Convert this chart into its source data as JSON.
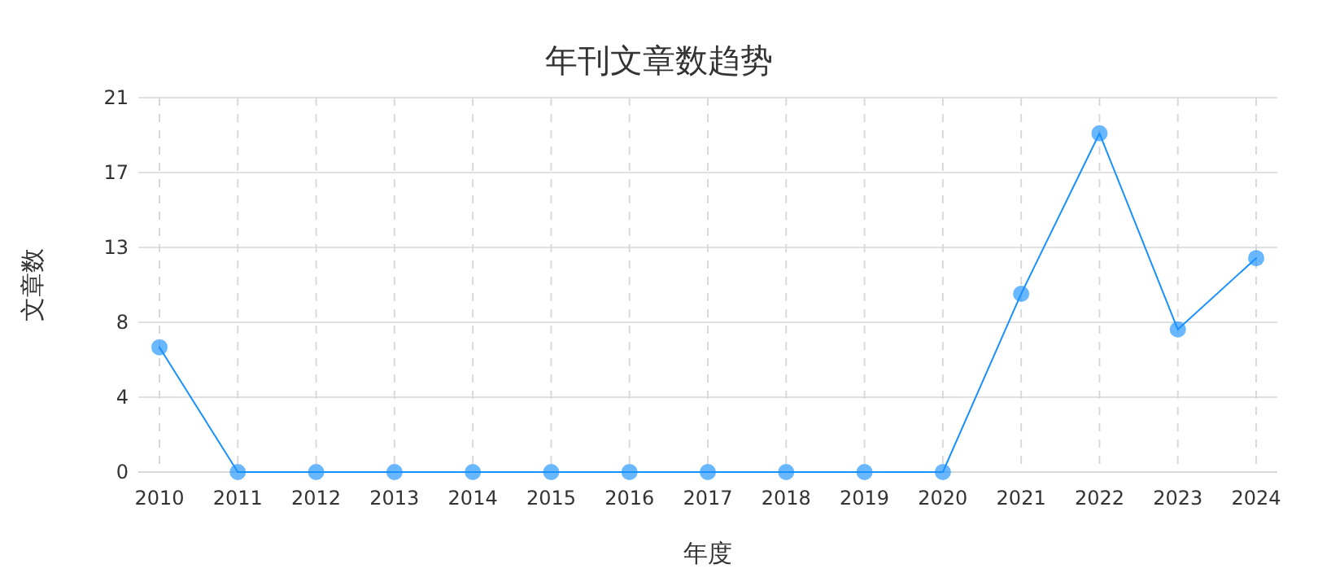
{
  "chart_data": {
    "type": "line",
    "title": "年刊文章数趋势",
    "xlabel": "年度",
    "ylabel": "文章数",
    "categories": [
      "2010",
      "2011",
      "2012",
      "2013",
      "2014",
      "2015",
      "2016",
      "2017",
      "2018",
      "2019",
      "2020",
      "2021",
      "2022",
      "2023",
      "2024"
    ],
    "series": [
      {
        "color": "#1890ff",
        "values": [
          7,
          0,
          0,
          0,
          0,
          0,
          0,
          0,
          0,
          0,
          0,
          10,
          19,
          8,
          12
        ]
      }
    ],
    "ylim": [
      0,
      21
    ],
    "yticks": [
      0,
      {
        "value": 4.2,
        "label": "4"
      },
      {
        "value": 8.4,
        "label": "8"
      },
      {
        "value": 12.6,
        "label": "13"
      },
      {
        "value": 16.8,
        "label": "17"
      },
      21
    ],
    "grid": true,
    "marker": "circle",
    "line_style": "solid"
  }
}
